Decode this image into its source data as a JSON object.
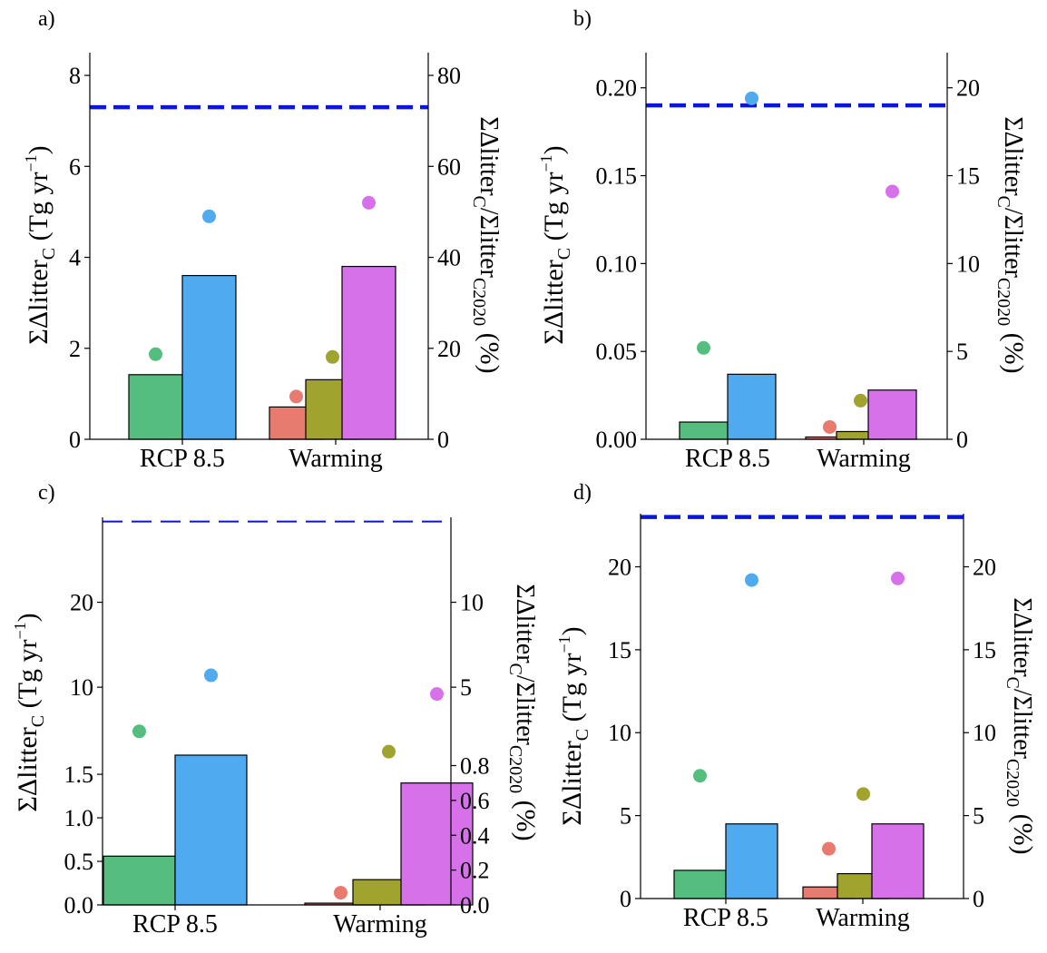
{
  "figure": {
    "colors": {
      "rcp_low": "#55be7e",
      "rcp_high": "#50aaf0",
      "warm_1": "#e87b6f",
      "warm_2": "#a1a32f",
      "warm_3": "#d671ea",
      "reference_line": "#0a16e0",
      "bar_edge": "#000000"
    },
    "y_label_left": "ΣΔlitter_C (Tg yr^-1)",
    "y_label_right": "ΣΔlitter_C / Σlitter_C2020 (%)"
  },
  "chart_data": [
    {
      "panel": "a)",
      "type": "bar",
      "categories": [
        "RCP 8.5",
        "Warming"
      ],
      "left_axis": {
        "ylim": [
          0,
          8.5
        ],
        "ticks": [
          "0",
          "2",
          "4",
          "6",
          "8"
        ],
        "tick_values": [
          0,
          2,
          4,
          6,
          8
        ]
      },
      "right_axis": {
        "ylim": [
          0,
          85
        ],
        "ticks": [
          "0",
          "20",
          "40",
          "60",
          "80"
        ],
        "tick_values": [
          0,
          20,
          40,
          60,
          80
        ]
      },
      "bars": [
        {
          "category": "RCP 8.5",
          "color": "rcp_low",
          "value": 1.42
        },
        {
          "category": "RCP 8.5",
          "color": "rcp_high",
          "value": 3.6
        },
        {
          "category": "Warming",
          "color": "warm_1",
          "value": 0.71
        },
        {
          "category": "Warming",
          "color": "warm_2",
          "value": 1.31
        },
        {
          "category": "Warming",
          "color": "warm_3",
          "value": 3.8
        }
      ],
      "points_percent": [
        {
          "category": "RCP 8.5",
          "color": "rcp_low",
          "value": 18.7
        },
        {
          "category": "RCP 8.5",
          "color": "rcp_high",
          "value": 49
        },
        {
          "category": "Warming",
          "color": "warm_1",
          "value": 9.4
        },
        {
          "category": "Warming",
          "color": "warm_2",
          "value": 18.1
        },
        {
          "category": "Warming",
          "color": "warm_3",
          "value": 52
        }
      ],
      "reference_line": {
        "value": 7.3,
        "style": "dashed-thick"
      }
    },
    {
      "panel": "b)",
      "type": "bar",
      "categories": [
        "RCP 8.5",
        "Warming"
      ],
      "left_axis": {
        "ylim": [
          0,
          0.22
        ],
        "ticks": [
          "0.00",
          "0.05",
          "0.10",
          "0.15",
          "0.20"
        ],
        "tick_values": [
          0,
          0.05,
          0.1,
          0.15,
          0.2
        ]
      },
      "right_axis": {
        "ylim": [
          0,
          22
        ],
        "ticks": [
          "0",
          "5",
          "10",
          "15",
          "20"
        ],
        "tick_values": [
          0,
          5,
          10,
          15,
          20
        ]
      },
      "bars": [
        {
          "category": "RCP 8.5",
          "color": "rcp_low",
          "value": 0.0098
        },
        {
          "category": "RCP 8.5",
          "color": "rcp_high",
          "value": 0.037
        },
        {
          "category": "Warming",
          "color": "warm_1",
          "value": 0.0013
        },
        {
          "category": "Warming",
          "color": "warm_2",
          "value": 0.0044
        },
        {
          "category": "Warming",
          "color": "warm_3",
          "value": 0.028
        }
      ],
      "points_percent": [
        {
          "category": "RCP 8.5",
          "color": "rcp_low",
          "value": 5.2
        },
        {
          "category": "RCP 8.5",
          "color": "rcp_high",
          "value": 19.4
        },
        {
          "category": "Warming",
          "color": "warm_1",
          "value": 0.7
        },
        {
          "category": "Warming",
          "color": "warm_2",
          "value": 2.2
        },
        {
          "category": "Warming",
          "color": "warm_3",
          "value": 14.1
        }
      ],
      "reference_line": {
        "value": 0.19,
        "style": "dashed-thick"
      }
    },
    {
      "panel": "c)",
      "type": "bar",
      "broken_axis": true,
      "categories": [
        "RCP 8.5",
        "Warming"
      ],
      "upper": {
        "left_axis": {
          "ylim": [
            2,
            30
          ],
          "ticks": [
            "10",
            "20"
          ],
          "tick_values": [
            10,
            20
          ]
        },
        "right_axis": {
          "ylim": [
            1,
            15
          ],
          "ticks": [
            "5",
            "10"
          ],
          "tick_values": [
            5,
            10
          ]
        },
        "points_percent": [
          {
            "category": "RCP 8.5",
            "color": "rcp_low",
            "value": 2.4
          },
          {
            "category": "RCP 8.5",
            "color": "rcp_high",
            "value": 5.7
          },
          {
            "category": "Warming",
            "color": "warm_3",
            "value": 4.6
          }
        ],
        "reference_line": {
          "value": 29.5,
          "style": "dashed-thin"
        }
      },
      "lower": {
        "left_axis": {
          "ylim": [
            0,
            1.72
          ],
          "ticks": [
            "0.0",
            "0.5",
            "1.0",
            "1.5"
          ],
          "tick_values": [
            0,
            0.5,
            1,
            1.5
          ]
        },
        "right_axis": {
          "ylim": [
            0,
            0.86
          ],
          "ticks": [
            "0.0",
            "0.2",
            "0.4",
            "0.6",
            "0.8"
          ],
          "tick_values": [
            0,
            0.2,
            0.4,
            0.6,
            0.8
          ]
        },
        "bars": [
          {
            "category": "RCP 8.5",
            "color": "rcp_low",
            "value": 0.56
          },
          {
            "category": "RCP 8.5",
            "color": "rcp_high",
            "value": 1.72
          },
          {
            "category": "Warming",
            "color": "warm_1",
            "value": 0.02
          },
          {
            "category": "Warming",
            "color": "warm_2",
            "value": 0.29
          },
          {
            "category": "Warming",
            "color": "warm_3",
            "value": 1.4
          }
        ],
        "points_percent": [
          {
            "category": "Warming",
            "color": "warm_1",
            "value": 0.07
          },
          {
            "category": "Warming",
            "color": "warm_2",
            "value": 0.88
          }
        ]
      }
    },
    {
      "panel": "d)",
      "type": "bar",
      "categories": [
        "RCP 8.5",
        "Warming"
      ],
      "left_axis": {
        "ylim": [
          0,
          23.2
        ],
        "ticks": [
          "0",
          "5",
          "10",
          "15",
          "20"
        ],
        "tick_values": [
          0,
          5,
          10,
          15,
          20
        ]
      },
      "right_axis": {
        "ylim": [
          0,
          23.2
        ],
        "ticks": [
          "0",
          "5",
          "10",
          "15",
          "20"
        ],
        "tick_values": [
          0,
          5,
          10,
          15,
          20
        ]
      },
      "bars": [
        {
          "category": "RCP 8.5",
          "color": "rcp_low",
          "value": 1.7
        },
        {
          "category": "RCP 8.5",
          "color": "rcp_high",
          "value": 4.5
        },
        {
          "category": "Warming",
          "color": "warm_1",
          "value": 0.7
        },
        {
          "category": "Warming",
          "color": "warm_2",
          "value": 1.5
        },
        {
          "category": "Warming",
          "color": "warm_3",
          "value": 4.5
        }
      ],
      "points_percent": [
        {
          "category": "RCP 8.5",
          "color": "rcp_low",
          "value": 7.4
        },
        {
          "category": "RCP 8.5",
          "color": "rcp_high",
          "value": 19.2
        },
        {
          "category": "Warming",
          "color": "warm_1",
          "value": 3.0
        },
        {
          "category": "Warming",
          "color": "warm_2",
          "value": 6.3
        },
        {
          "category": "Warming",
          "color": "warm_3",
          "value": 19.3
        }
      ],
      "reference_line": {
        "value": 23.0,
        "style": "dashed-thick"
      }
    }
  ]
}
